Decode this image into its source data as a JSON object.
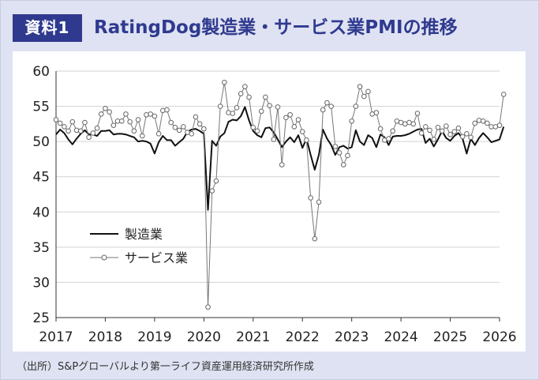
{
  "header": {
    "badge": "資料1",
    "title": "RatingDog製造業・サービス業PMIの推移"
  },
  "source": "（出所）S&Pグローバルより第一ライフ資産運用経済研究所作成",
  "colors": {
    "brand": "#2f3a8f",
    "background": "#dfe2f2",
    "manufacturing": "#111111",
    "services": "#777777"
  },
  "chart_data": {
    "type": "line",
    "title": "",
    "xlabel": "",
    "ylabel": "",
    "ylim": [
      25,
      60
    ],
    "yticks": [
      25,
      30,
      35,
      40,
      45,
      50,
      55,
      60
    ],
    "xticks": [
      "2017",
      "2018",
      "2019",
      "2020",
      "2021",
      "2022",
      "2023",
      "2024",
      "2025",
      "2026"
    ],
    "x_start": "2017-01",
    "grid": true,
    "legend": "lower-left",
    "series": [
      {
        "name": "製造業",
        "marker": "none",
        "values": [
          51.0,
          51.7,
          51.2,
          50.3,
          49.6,
          50.4,
          51.1,
          51.6,
          51.0,
          51.0,
          50.8,
          51.5,
          51.5,
          51.6,
          51.0,
          51.1,
          51.1,
          51.0,
          50.8,
          50.6,
          50.0,
          50.1,
          50.0,
          49.7,
          48.3,
          49.9,
          50.8,
          50.2,
          50.2,
          49.4,
          49.9,
          50.4,
          51.4,
          51.7,
          51.8,
          51.5,
          51.1,
          40.3,
          50.1,
          49.4,
          50.7,
          51.2,
          52.8,
          53.1,
          53.0,
          53.6,
          54.9,
          53.0,
          51.5,
          50.9,
          50.6,
          51.9,
          52.0,
          51.3,
          50.3,
          49.2,
          50.0,
          50.6,
          49.9,
          50.9,
          49.1,
          50.4,
          48.1,
          46.0,
          48.1,
          51.7,
          50.4,
          49.5,
          48.1,
          49.2,
          49.4,
          49.0,
          49.2,
          51.6,
          50.0,
          49.5,
          50.9,
          50.5,
          49.2,
          51.0,
          50.6,
          49.5,
          50.7,
          50.8,
          50.8,
          50.9,
          51.1,
          51.4,
          51.7,
          51.8,
          49.8,
          50.4,
          49.3,
          50.3,
          51.5,
          50.5,
          50.1,
          50.8,
          51.2,
          50.4,
          48.3,
          50.4,
          49.5,
          50.5,
          51.2,
          50.6,
          49.9,
          50.1,
          50.3,
          52.1
        ]
      },
      {
        "name": "サービス業",
        "marker": "open-circle",
        "values": [
          53.1,
          52.6,
          52.1,
          51.5,
          52.8,
          51.6,
          51.5,
          52.7,
          50.6,
          51.2,
          51.9,
          53.9,
          54.7,
          54.2,
          52.3,
          52.9,
          52.9,
          53.9,
          52.8,
          51.5,
          53.1,
          50.8,
          53.8,
          53.9,
          53.6,
          51.1,
          54.4,
          54.5,
          52.7,
          52.0,
          51.6,
          52.1,
          51.3,
          51.1,
          53.5,
          52.5,
          51.8,
          26.5,
          43.0,
          44.4,
          55.0,
          58.4,
          54.1,
          54.0,
          54.8,
          56.8,
          57.8,
          56.3,
          52.0,
          51.5,
          54.3,
          56.3,
          55.1,
          50.3,
          54.9,
          46.7,
          53.4,
          53.8,
          52.1,
          53.1,
          51.4,
          50.2,
          42.0,
          36.2,
          41.4,
          54.5,
          55.5,
          55.0,
          49.3,
          48.4,
          46.7,
          48.0,
          52.9,
          55.0,
          57.8,
          56.4,
          57.1,
          53.9,
          54.1,
          51.8,
          50.2,
          50.4,
          51.5,
          52.9,
          52.7,
          52.5,
          52.7,
          52.5,
          54.0,
          51.2,
          52.1,
          51.6,
          50.3,
          52.0,
          51.5,
          52.2,
          51.0,
          51.4,
          51.9,
          50.7,
          51.1,
          50.6,
          52.6,
          53.0,
          52.9,
          52.6,
          52.1,
          52.1,
          52.3,
          56.7
        ]
      }
    ]
  }
}
